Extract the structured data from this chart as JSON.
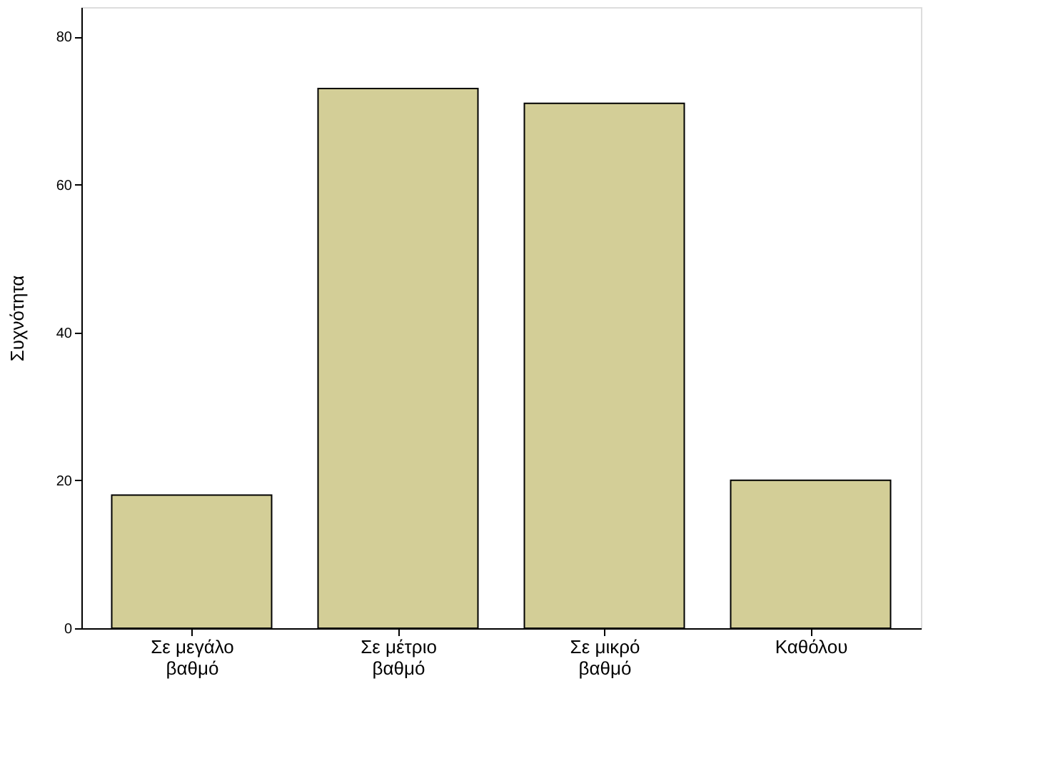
{
  "chart_data": {
    "type": "bar",
    "ylabel": "Συχνότητα",
    "categories": [
      "Σε μεγάλο βαθμό",
      "Σε μέτριο βαθμό",
      "Σε μικρό βαθμό",
      "Καθόλου"
    ],
    "values": [
      18,
      73,
      71,
      20
    ],
    "color": "#d3ce97",
    "ylim": [
      0,
      84
    ],
    "yticks": [
      0,
      20,
      40,
      60,
      80
    ],
    "grid": false
  }
}
